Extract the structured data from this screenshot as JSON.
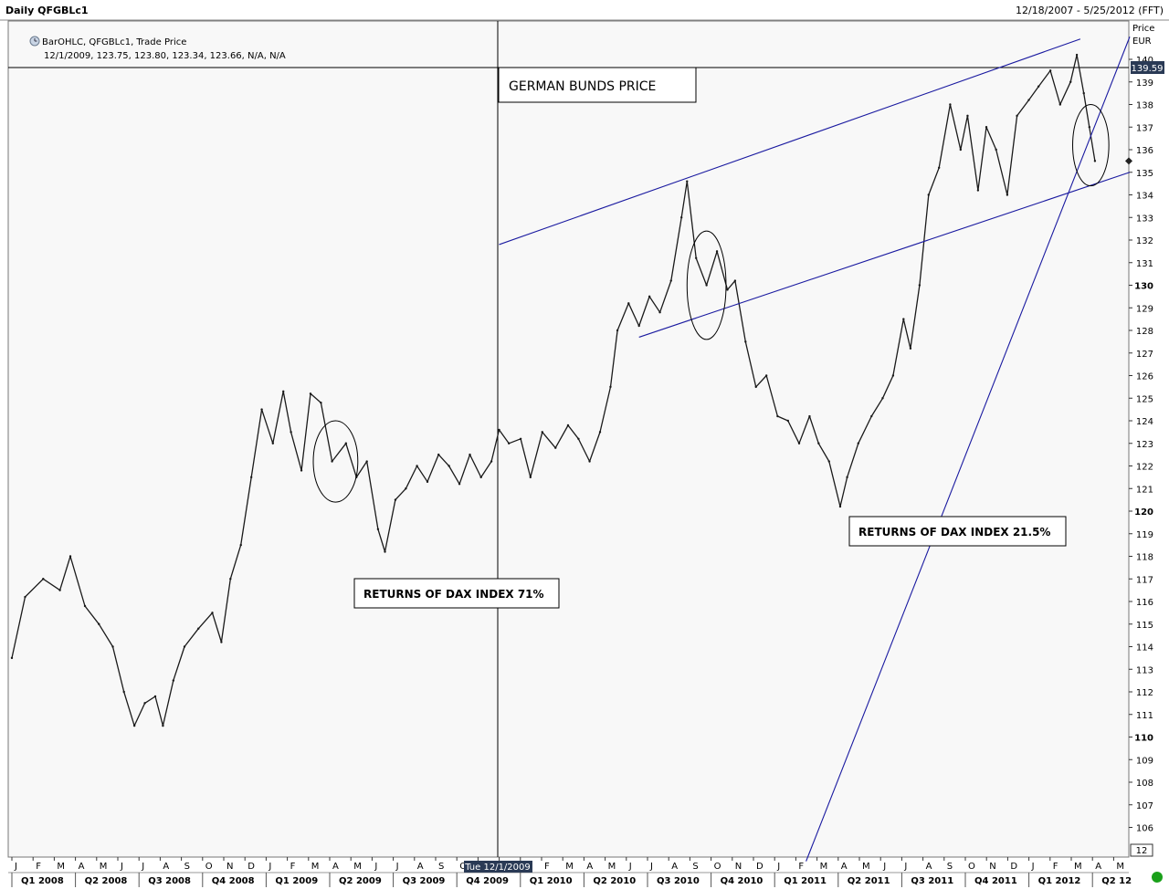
{
  "window": {
    "title": "Daily QFGBLc1",
    "date_range": "12/18/2007 - 5/25/2012 (FFT)"
  },
  "legend": {
    "series": "BarOHLC, QFGBLc1, Trade Price",
    "values": "12/1/2009, 123.75, 123.80, 123.34, 123.66, N/A, N/A",
    "icon": "clock-icon"
  },
  "colors": {
    "price": "#1a1a1a",
    "trendline": "#1a1aa0",
    "background": "#f8f8f8"
  },
  "annotations": {
    "title": "GERMAN BUNDS PRICE",
    "dax_2009": "RETURNS OF DAX INDEX 71%",
    "dax_2011": "RETURNS OF DAX INDEX 21.5%"
  },
  "cursor": {
    "date_label": "Tue 12/1/2009",
    "price_label": "139.59"
  },
  "chart_data": {
    "type": "line",
    "ylabel": "Price",
    "yunit": "EUR",
    "ylim": [
      105,
      141
    ],
    "yticks": [
      106,
      107,
      108,
      109,
      110,
      111,
      112,
      113,
      114,
      115,
      116,
      117,
      118,
      119,
      120,
      121,
      122,
      123,
      124,
      125,
      126,
      127,
      128,
      129,
      130,
      131,
      132,
      133,
      134,
      135,
      136,
      137,
      138,
      139,
      140
    ],
    "ybold": [
      110,
      120,
      130
    ],
    "corner_label": "12",
    "last_price": 139.59,
    "grid": false,
    "months": [
      "J",
      "F",
      "M",
      "A",
      "M",
      "J",
      "J",
      "A",
      "S",
      "O",
      "N",
      "D",
      "J",
      "F",
      "M",
      "A",
      "M",
      "J",
      "J",
      "A",
      "S",
      "O",
      "N",
      "D",
      "J",
      "F",
      "M",
      "A",
      "M",
      "J",
      "J",
      "A",
      "S",
      "O",
      "N",
      "D",
      "J",
      "F",
      "M",
      "A",
      "M",
      "J",
      "J",
      "A",
      "S",
      "O",
      "N",
      "D",
      "J",
      "F",
      "M",
      "A",
      "M"
    ],
    "quarters": [
      "Q1 2008",
      "Q2 2008",
      "Q3 2008",
      "Q4 2008",
      "Q1 2009",
      "Q2 2009",
      "Q3 2009",
      "Q4 2009",
      "Q1 2010",
      "Q2 2010",
      "Q3 2010",
      "Q4 2010",
      "Q1 2011",
      "Q2 2011",
      "Q3 2011",
      "Q4 2011",
      "Q1 2012",
      "Q2 12"
    ],
    "series": [
      {
        "points": [
          [
            "2008-01-01",
            113.5
          ],
          [
            "2008-01-20",
            116.2
          ],
          [
            "2008-02-15",
            117.0
          ],
          [
            "2008-03-10",
            116.5
          ],
          [
            "2008-03-25",
            118.0
          ],
          [
            "2008-04-15",
            115.8
          ],
          [
            "2008-05-05",
            115.0
          ],
          [
            "2008-05-25",
            114.0
          ],
          [
            "2008-06-10",
            112.0
          ],
          [
            "2008-06-25",
            110.5
          ],
          [
            "2008-07-10",
            111.5
          ],
          [
            "2008-07-25",
            111.8
          ],
          [
            "2008-08-05",
            110.5
          ],
          [
            "2008-08-20",
            112.5
          ],
          [
            "2008-09-05",
            114.0
          ],
          [
            "2008-09-25",
            114.8
          ],
          [
            "2008-10-15",
            115.5
          ],
          [
            "2008-10-28",
            114.2
          ],
          [
            "2008-11-10",
            117.0
          ],
          [
            "2008-11-25",
            118.5
          ],
          [
            "2008-12-10",
            121.5
          ],
          [
            "2008-12-25",
            124.5
          ],
          [
            "2009-01-10",
            123.0
          ],
          [
            "2009-01-25",
            125.3
          ],
          [
            "2009-02-05",
            123.5
          ],
          [
            "2009-02-20",
            121.8
          ],
          [
            "2009-03-05",
            125.2
          ],
          [
            "2009-03-20",
            124.8
          ],
          [
            "2009-04-05",
            122.2
          ],
          [
            "2009-04-25",
            123.0
          ],
          [
            "2009-05-10",
            121.5
          ],
          [
            "2009-05-25",
            122.2
          ],
          [
            "2009-06-10",
            119.2
          ],
          [
            "2009-06-20",
            118.2
          ],
          [
            "2009-07-05",
            120.5
          ],
          [
            "2009-07-20",
            121.0
          ],
          [
            "2009-08-05",
            122.0
          ],
          [
            "2009-08-20",
            121.3
          ],
          [
            "2009-09-05",
            122.5
          ],
          [
            "2009-09-20",
            122.0
          ],
          [
            "2009-10-05",
            121.2
          ],
          [
            "2009-10-20",
            122.5
          ],
          [
            "2009-11-05",
            121.5
          ],
          [
            "2009-11-20",
            122.2
          ],
          [
            "2009-12-01",
            123.6
          ],
          [
            "2009-12-15",
            123.0
          ],
          [
            "2010-01-01",
            123.2
          ],
          [
            "2010-01-15",
            121.5
          ],
          [
            "2010-02-01",
            123.5
          ],
          [
            "2010-02-20",
            122.8
          ],
          [
            "2010-03-10",
            123.8
          ],
          [
            "2010-03-25",
            123.2
          ],
          [
            "2010-04-10",
            122.2
          ],
          [
            "2010-04-25",
            123.5
          ],
          [
            "2010-05-10",
            125.5
          ],
          [
            "2010-05-20",
            128.0
          ],
          [
            "2010-06-05",
            129.2
          ],
          [
            "2010-06-20",
            128.2
          ],
          [
            "2010-07-05",
            129.5
          ],
          [
            "2010-07-20",
            128.8
          ],
          [
            "2010-08-05",
            130.2
          ],
          [
            "2010-08-20",
            133.0
          ],
          [
            "2010-08-28",
            134.6
          ],
          [
            "2010-09-10",
            131.2
          ],
          [
            "2010-09-25",
            130.0
          ],
          [
            "2010-10-10",
            131.5
          ],
          [
            "2010-10-25",
            129.8
          ],
          [
            "2010-11-05",
            130.2
          ],
          [
            "2010-11-20",
            127.5
          ],
          [
            "2010-12-05",
            125.5
          ],
          [
            "2010-12-20",
            126.0
          ],
          [
            "2011-01-05",
            124.2
          ],
          [
            "2011-01-20",
            124.0
          ],
          [
            "2011-02-05",
            123.0
          ],
          [
            "2011-02-20",
            124.2
          ],
          [
            "2011-03-05",
            123.0
          ],
          [
            "2011-03-20",
            122.2
          ],
          [
            "2011-04-05",
            120.2
          ],
          [
            "2011-04-15",
            121.5
          ],
          [
            "2011-05-01",
            123.0
          ],
          [
            "2011-05-20",
            124.2
          ],
          [
            "2011-06-05",
            125.0
          ],
          [
            "2011-06-20",
            126.0
          ],
          [
            "2011-07-05",
            128.5
          ],
          [
            "2011-07-15",
            127.2
          ],
          [
            "2011-07-28",
            130.0
          ],
          [
            "2011-08-10",
            134.0
          ],
          [
            "2011-08-25",
            135.2
          ],
          [
            "2011-09-10",
            138.0
          ],
          [
            "2011-09-25",
            136.0
          ],
          [
            "2011-10-05",
            137.5
          ],
          [
            "2011-10-20",
            134.2
          ],
          [
            "2011-11-01",
            137.0
          ],
          [
            "2011-11-15",
            136.0
          ],
          [
            "2011-12-01",
            134.0
          ],
          [
            "2011-12-15",
            137.5
          ],
          [
            "2012-01-01",
            138.2
          ],
          [
            "2012-01-15",
            138.8
          ],
          [
            "2012-02-01",
            139.5
          ],
          [
            "2012-02-15",
            138.0
          ],
          [
            "2012-03-01",
            139.0
          ],
          [
            "2012-03-10",
            140.2
          ],
          [
            "2012-03-20",
            138.5
          ],
          [
            "2012-03-28",
            137.0
          ],
          [
            "2012-04-05",
            135.5
          ]
        ]
      }
    ],
    "trendlines": [
      {
        "from": [
          "2009-12-01",
          131.8
        ],
        "to": [
          "2012-03-15",
          140.9
        ]
      },
      {
        "from": [
          "2010-06-20",
          127.7
        ],
        "to": [
          "2012-05-25",
          135.0
        ]
      },
      {
        "from": [
          "2011-02-15",
          104.5
        ],
        "to": [
          "2012-05-25",
          141.0
        ]
      }
    ],
    "circles": [
      {
        "center": [
          "2009-04-10",
          122.2
        ],
        "rx_days": 32,
        "ry": 1.8
      },
      {
        "center": [
          "2010-09-25",
          130.0
        ],
        "rx_days": 28,
        "ry": 2.4
      },
      {
        "center": [
          "2012-03-30",
          136.2
        ],
        "rx_days": 26,
        "ry": 1.8
      }
    ]
  }
}
